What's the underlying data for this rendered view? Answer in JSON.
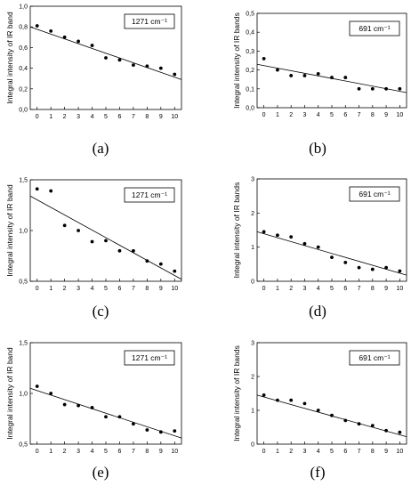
{
  "chart_data": [
    {
      "type": "scatter",
      "panel": "(a)",
      "ylabel": "Integral intensity of IR band",
      "legend": "1271 cm⁻¹",
      "legend_placement": "top-right",
      "ylim": [
        0,
        1.0
      ],
      "yticks": [
        "0,0",
        "0,2",
        "0,4",
        "0,6",
        "0,8",
        "1,0"
      ],
      "ytick_values": [
        0,
        0.2,
        0.4,
        0.6,
        0.8,
        1.0
      ],
      "xlim": [
        -0.5,
        10.5
      ],
      "xticks": [
        "0",
        "1",
        "2",
        "3",
        "4",
        "5",
        "6",
        "7",
        "8",
        "9",
        "10"
      ],
      "x": [
        0,
        1,
        2,
        3,
        4,
        5,
        6,
        7,
        8,
        9,
        10
      ],
      "y": [
        0.81,
        0.76,
        0.7,
        0.66,
        0.62,
        0.5,
        0.48,
        0.43,
        0.42,
        0.4,
        0.34
      ],
      "fit": {
        "x": [
          -0.5,
          10.5
        ],
        "y": [
          0.8,
          0.29
        ]
      }
    },
    {
      "type": "scatter",
      "panel": "(b)",
      "ylabel": "Integral intensity of IR bands",
      "legend": "691 cm⁻¹",
      "legend_placement": "top-right",
      "ylim": [
        0,
        0.5
      ],
      "yticks": [
        "0,0",
        "0,1",
        "0,2",
        "0,3",
        "0,4",
        "0,5"
      ],
      "ytick_values": [
        0,
        0.1,
        0.2,
        0.3,
        0.4,
        0.5
      ],
      "xlim": [
        -0.5,
        10.5
      ],
      "xticks": [
        "0",
        "1",
        "2",
        "3",
        "4",
        "5",
        "6",
        "7",
        "8",
        "9",
        "10"
      ],
      "x": [
        0,
        1,
        2,
        3,
        4,
        5,
        6,
        7,
        8,
        9,
        10
      ],
      "y": [
        0.26,
        0.2,
        0.17,
        0.17,
        0.18,
        0.16,
        0.16,
        0.1,
        0.1,
        0.1,
        0.1
      ],
      "fit": {
        "x": [
          -0.5,
          10.5
        ],
        "y": [
          0.23,
          0.08
        ]
      }
    },
    {
      "type": "scatter",
      "panel": "(c)",
      "ylabel": "Integral intensity of IR band",
      "legend": "1271 cm⁻¹",
      "legend_placement": "top-right",
      "ylim": [
        0.5,
        1.5
      ],
      "yticks": [
        "0,5",
        "1,0",
        "1,5"
      ],
      "ytick_values": [
        0.5,
        1.0,
        1.5
      ],
      "xlim": [
        -0.5,
        10.5
      ],
      "xticks": [
        "0",
        "1",
        "2",
        "3",
        "4",
        "5",
        "6",
        "7",
        "8",
        "9",
        "10"
      ],
      "x": [
        0,
        1,
        2,
        3,
        4,
        5,
        6,
        7,
        8,
        9,
        10
      ],
      "y": [
        1.41,
        1.39,
        1.05,
        1.0,
        0.89,
        0.9,
        0.8,
        0.8,
        0.7,
        0.67,
        0.6
      ],
      "fit": {
        "x": [
          -0.5,
          10.5
        ],
        "y": [
          1.34,
          0.52
        ]
      }
    },
    {
      "type": "scatter",
      "panel": "(d)",
      "ylabel": "Integral intensity of IR bands",
      "legend": "691 cm⁻¹",
      "legend_placement": "top-right",
      "ylim": [
        0,
        3
      ],
      "yticks": [
        "0",
        "1",
        "2",
        "3"
      ],
      "ytick_values": [
        0,
        1,
        2,
        3
      ],
      "xlim": [
        -0.5,
        10.5
      ],
      "xticks": [
        "0",
        "1",
        "2",
        "3",
        "4",
        "5",
        "6",
        "7",
        "8",
        "9",
        "10"
      ],
      "x": [
        0,
        1,
        2,
        3,
        4,
        5,
        6,
        7,
        8,
        9,
        10
      ],
      "y": [
        1.45,
        1.35,
        1.3,
        1.1,
        1.0,
        0.7,
        0.55,
        0.4,
        0.35,
        0.4,
        0.3
      ],
      "fit": {
        "x": [
          -0.5,
          10.5
        ],
        "y": [
          1.45,
          0.18
        ]
      }
    },
    {
      "type": "scatter",
      "panel": "(e)",
      "ylabel": "Integral intensity of IR band",
      "legend": "1271 cm⁻¹",
      "legend_placement": "top-right",
      "ylim": [
        0.5,
        1.5
      ],
      "yticks": [
        "0,5",
        "1,0",
        "1,5"
      ],
      "ytick_values": [
        0.5,
        1.0,
        1.5
      ],
      "xlim": [
        -0.5,
        10.5
      ],
      "xticks": [
        "0",
        "1",
        "2",
        "3",
        "4",
        "5",
        "6",
        "7",
        "8",
        "9",
        "10"
      ],
      "x": [
        0,
        1,
        2,
        3,
        4,
        5,
        6,
        7,
        8,
        9,
        10
      ],
      "y": [
        1.07,
        1.0,
        0.89,
        0.88,
        0.86,
        0.77,
        0.77,
        0.7,
        0.64,
        0.62,
        0.63
      ],
      "fit": {
        "x": [
          -0.5,
          10.5
        ],
        "y": [
          1.05,
          0.56
        ]
      }
    },
    {
      "type": "scatter",
      "panel": "(f)",
      "ylabel": "Integral intensity of IR bands",
      "legend": "691 cm⁻¹",
      "legend_placement": "top-right",
      "ylim": [
        0,
        3
      ],
      "yticks": [
        "0",
        "1",
        "2",
        "3"
      ],
      "ytick_values": [
        0,
        1,
        2,
        3
      ],
      "xlim": [
        -0.5,
        10.5
      ],
      "xticks": [
        "0",
        "1",
        "2",
        "3",
        "4",
        "5",
        "6",
        "7",
        "8",
        "9",
        "10"
      ],
      "x": [
        0,
        1,
        2,
        3,
        4,
        5,
        6,
        7,
        8,
        9,
        10
      ],
      "y": [
        1.45,
        1.3,
        1.3,
        1.2,
        1.0,
        0.85,
        0.7,
        0.6,
        0.55,
        0.4,
        0.35
      ],
      "fit": {
        "x": [
          -0.5,
          10.5
        ],
        "y": [
          1.45,
          0.22
        ]
      }
    }
  ]
}
